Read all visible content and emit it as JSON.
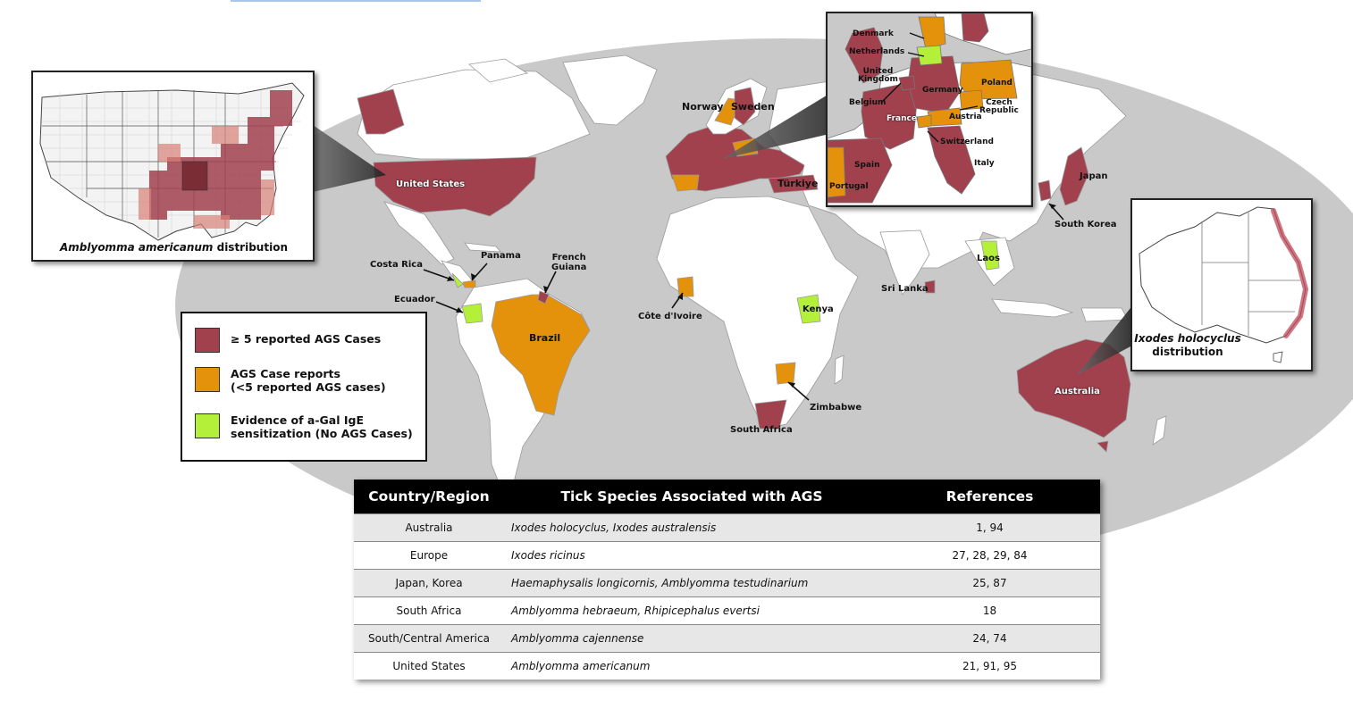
{
  "colors": {
    "ocean": "#c9c9c9",
    "no_data_land": "#ffffff",
    "high_cases": "#a1414e",
    "case_reports": "#e4910b",
    "sensitization": "#b4f03a"
  },
  "country_labels": {
    "united_states": "United States",
    "norway": "Norway",
    "sweden": "Sweden",
    "turkiye": "Türkiye",
    "japan": "Japan",
    "south_korea": "South Korea",
    "costa_rica": "Costa Rica",
    "panama": "Panama",
    "french_guiana": "French\nGuiana",
    "ecuador": "Ecuador",
    "brazil": "Brazil",
    "cote_divoire": "Côte d'Ivoire",
    "kenya": "Kenya",
    "sri_lanka": "Sri Lanka",
    "laos": "Laos",
    "zimbabwe": "Zimbabwe",
    "south_africa": "South Africa",
    "australia": "Australia"
  },
  "europe_inset": {
    "labels": {
      "denmark": "Denmark",
      "netherlands": "Netherlands",
      "united_kingdom": "United\nKingdom",
      "germany": "Germany",
      "poland": "Poland",
      "belgium": "Belgium",
      "czech_republic": "Czech\nRepublic",
      "france": "France",
      "austria": "Austria",
      "switzerland": "Switzerland",
      "italy": "Italy",
      "spain": "Spain",
      "portugal": "Portugal"
    }
  },
  "us_inset": {
    "caption_species": "Amblyomma americanum",
    "caption_suffix": " distribution"
  },
  "australia_inset": {
    "caption_species": "Ixodes holocyclus",
    "caption_suffix": "distribution"
  },
  "legend": {
    "items": [
      {
        "label": "≥ 5 reported AGS Cases",
        "color": "#a1414e"
      },
      {
        "label": "AGS Case reports\n(<5 reported AGS cases)",
        "color": "#e4910b"
      },
      {
        "label": "Evidence of a-Gal IgE\nsensitization (No AGS Cases)",
        "color": "#b4f03a"
      }
    ]
  },
  "table": {
    "headers": [
      "Country/Region",
      "Tick Species Associated with AGS",
      "References"
    ],
    "rows": [
      {
        "region": "Australia",
        "species": "Ixodes holocyclus, Ixodes australensis",
        "refs": "1, 94"
      },
      {
        "region": "Europe",
        "species": "Ixodes ricinus",
        "refs": "27, 28, 29, 84"
      },
      {
        "region": "Japan, Korea",
        "species": "Haemaphysalis longicornis, Amblyomma testudinarium",
        "refs": "25, 87"
      },
      {
        "region": "South Africa",
        "species": "Amblyomma hebraeum, Rhipicephalus evertsi",
        "refs": "18"
      },
      {
        "region": "South/Central America",
        "species": "Amblyomma cajennense",
        "refs": "24, 74"
      },
      {
        "region": "United States",
        "species": "Amblyomma americanum",
        "refs": "21, 91, 95"
      }
    ]
  }
}
